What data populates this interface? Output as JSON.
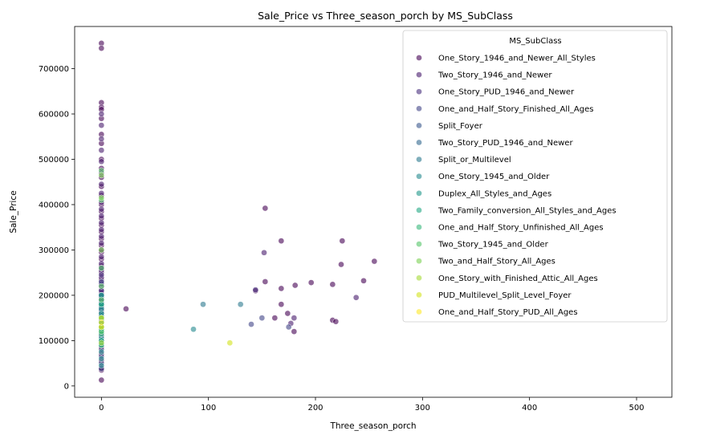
{
  "chart_data": {
    "type": "scatter",
    "title": "Sale_Price vs Three_season_porch by MS_SubClass",
    "xlabel": "Three_season_porch",
    "ylabel": "Sale_Price",
    "xlim": [
      -25,
      533
    ],
    "ylim": [
      -25000,
      793000
    ],
    "xticks": [
      0,
      100,
      200,
      300,
      400,
      500
    ],
    "yticks": [
      0,
      100000,
      200000,
      300000,
      400000,
      500000,
      600000,
      700000
    ],
    "grid": false,
    "legend_title": "MS_SubClass",
    "legend_position": "top-right",
    "series": [
      {
        "name": "One_Story_1946_and_Newer_All_Styles",
        "color": "#440154",
        "points": [
          [
            0,
            756000
          ],
          [
            0,
            745000
          ],
          [
            0,
            625000
          ],
          [
            0,
            615000
          ],
          [
            0,
            610000
          ],
          [
            0,
            590000
          ],
          [
            0,
            555000
          ],
          [
            0,
            535000
          ],
          [
            0,
            500000
          ],
          [
            0,
            480000
          ],
          [
            0,
            460000
          ],
          [
            0,
            440000
          ],
          [
            0,
            420000
          ],
          [
            0,
            400000
          ],
          [
            0,
            385000
          ],
          [
            0,
            370000
          ],
          [
            0,
            355000
          ],
          [
            0,
            340000
          ],
          [
            0,
            325000
          ],
          [
            0,
            310000
          ],
          [
            0,
            295000
          ],
          [
            0,
            280000
          ],
          [
            0,
            265000
          ],
          [
            0,
            250000
          ],
          [
            0,
            235000
          ],
          [
            0,
            220000
          ],
          [
            0,
            205000
          ],
          [
            0,
            190000
          ],
          [
            0,
            175000
          ],
          [
            0,
            160000
          ],
          [
            0,
            145000
          ],
          [
            0,
            130000
          ],
          [
            0,
            115000
          ],
          [
            0,
            100000
          ],
          [
            0,
            85000
          ],
          [
            0,
            70000
          ],
          [
            0,
            55000
          ],
          [
            0,
            40000
          ],
          [
            0,
            35000
          ],
          [
            0,
            13000
          ],
          [
            23,
            170000
          ],
          [
            144,
            210000
          ],
          [
            153,
            230000
          ],
          [
            153,
            392000
          ],
          [
            162,
            150000
          ],
          [
            168,
            320000
          ],
          [
            168,
            215000
          ],
          [
            168,
            180000
          ],
          [
            174,
            160000
          ],
          [
            180,
            120000
          ],
          [
            181,
            222000
          ],
          [
            196,
            228000
          ],
          [
            216,
            224000
          ],
          [
            216,
            145000
          ],
          [
            219,
            142000
          ],
          [
            224,
            268000
          ],
          [
            225,
            320000
          ],
          [
            245,
            232000
          ],
          [
            255,
            275000
          ]
        ]
      },
      {
        "name": "Two_Story_1946_and_Newer",
        "color": "#481a6c",
        "points": [
          [
            0,
            600000
          ],
          [
            0,
            575000
          ],
          [
            0,
            545000
          ],
          [
            0,
            520000
          ],
          [
            0,
            495000
          ],
          [
            0,
            470000
          ],
          [
            0,
            445000
          ],
          [
            0,
            425000
          ],
          [
            0,
            405000
          ],
          [
            0,
            390000
          ],
          [
            0,
            375000
          ],
          [
            0,
            360000
          ],
          [
            0,
            345000
          ],
          [
            0,
            330000
          ],
          [
            0,
            315000
          ],
          [
            0,
            300000
          ],
          [
            0,
            285000
          ],
          [
            0,
            270000
          ],
          [
            0,
            255000
          ],
          [
            0,
            240000
          ],
          [
            0,
            228000
          ],
          [
            0,
            212000
          ],
          [
            0,
            198000
          ],
          [
            0,
            182000
          ],
          [
            0,
            168000
          ],
          [
            0,
            150000
          ],
          [
            152,
            294000
          ],
          [
            177,
            138000
          ],
          [
            180,
            150000
          ],
          [
            238,
            195000
          ]
        ]
      },
      {
        "name": "One_Story_PUD_1946_and_Newer",
        "color": "#472f7d",
        "points": [
          [
            0,
            260000
          ],
          [
            0,
            245000
          ],
          [
            0,
            225000
          ],
          [
            0,
            210000
          ],
          [
            0,
            195000
          ],
          [
            0,
            180000
          ],
          [
            0,
            165000
          ],
          [
            0,
            140000
          ],
          [
            144,
            212000
          ]
        ]
      },
      {
        "name": "One_and_Half_Story_Finished_All_Ages",
        "color": "#414487",
        "points": [
          [
            0,
            230000
          ],
          [
            0,
            200000
          ],
          [
            0,
            185000
          ],
          [
            0,
            155000
          ],
          [
            0,
            140000
          ],
          [
            0,
            125000
          ],
          [
            0,
            110000
          ],
          [
            0,
            95000
          ],
          [
            0,
            80000
          ],
          [
            0,
            65000
          ],
          [
            0,
            50000
          ],
          [
            0,
            38000
          ],
          [
            140,
            136000
          ],
          [
            150,
            150000
          ],
          [
            175,
            130000
          ]
        ]
      },
      {
        "name": "Split_Foyer",
        "color": "#39568c",
        "points": [
          [
            0,
            180000
          ],
          [
            0,
            160000
          ],
          [
            0,
            145000
          ]
        ]
      },
      {
        "name": "Two_Story_PUD_1946_and_Newer",
        "color": "#31688e",
        "points": [
          [
            0,
            190000
          ],
          [
            0,
            170000
          ],
          [
            0,
            150000
          ],
          [
            0,
            130000
          ],
          [
            0,
            110000
          ]
        ]
      },
      {
        "name": "Split_or_Multilevel",
        "color": "#2a788e",
        "points": [
          [
            0,
            200000
          ],
          [
            0,
            175000
          ],
          [
            0,
            155000
          ],
          [
            0,
            140000
          ],
          [
            95,
            180000
          ],
          [
            130,
            180000
          ]
        ]
      },
      {
        "name": "One_Story_1945_and_Older",
        "color": "#23888e",
        "points": [
          [
            0,
            170000
          ],
          [
            0,
            140000
          ],
          [
            0,
            120000
          ],
          [
            0,
            105000
          ],
          [
            0,
            90000
          ],
          [
            0,
            75000
          ],
          [
            0,
            60000
          ],
          [
            0,
            45000
          ],
          [
            86,
            125000
          ]
        ]
      },
      {
        "name": "Duplex_All_Styles_and_Ages",
        "color": "#1f988b",
        "points": [
          [
            0,
            200000
          ],
          [
            0,
            180000
          ],
          [
            0,
            160000
          ],
          [
            0,
            140000
          ],
          [
            0,
            120000
          ],
          [
            0,
            100000
          ]
        ]
      },
      {
        "name": "Two_Family_conversion_All_Styles_and_Ages",
        "color": "#22a884",
        "points": [
          [
            0,
            180000
          ],
          [
            0,
            150000
          ],
          [
            0,
            125000
          ],
          [
            0,
            100000
          ]
        ]
      },
      {
        "name": "One_and_Half_Story_Unfinished_All_Ages",
        "color": "#35b779",
        "points": [
          [
            0,
            140000
          ],
          [
            0,
            115000
          ],
          [
            0,
            90000
          ]
        ]
      },
      {
        "name": "Two_Story_1945_and_Older",
        "color": "#54c568",
        "points": [
          [
            0,
            475000
          ],
          [
            0,
            410000
          ],
          [
            0,
            260000
          ],
          [
            0,
            220000
          ],
          [
            0,
            190000
          ],
          [
            0,
            150000
          ],
          [
            0,
            120000
          ]
        ]
      },
      {
        "name": "Two_and_Half_Story_All_Ages",
        "color": "#7ad151",
        "points": [
          [
            0,
            465000
          ],
          [
            0,
            415000
          ],
          [
            0,
            300000
          ]
        ]
      },
      {
        "name": "One_Story_with_Finished_Attic_All_Ages",
        "color": "#a5db36",
        "points": [
          [
            0,
            130000
          ],
          [
            0,
            95000
          ]
        ]
      },
      {
        "name": "PUD_Multilevel_Split_Level_Foyer",
        "color": "#d2e21b",
        "points": [
          [
            0,
            150000
          ],
          [
            0,
            130000
          ],
          [
            120,
            95000
          ]
        ]
      },
      {
        "name": "One_and_Half_Story_PUD_All_Ages",
        "color": "#fde725",
        "points": [
          [
            0,
            140000
          ]
        ]
      }
    ]
  }
}
